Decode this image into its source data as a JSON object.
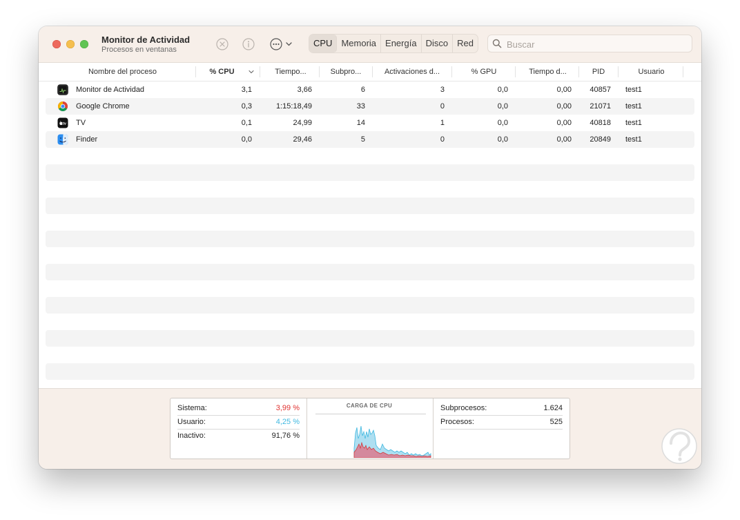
{
  "window": {
    "title": "Monitor de Actividad",
    "subtitle": "Procesos en ventanas"
  },
  "toolbar": {
    "stop_icon": "x-circle-icon",
    "info_icon": "info-icon",
    "more_icon": "ellipsis-circle-icon",
    "tabs": [
      {
        "label": "CPU",
        "active": true
      },
      {
        "label": "Memoria",
        "active": false
      },
      {
        "label": "Energía",
        "active": false
      },
      {
        "label": "Disco",
        "active": false
      },
      {
        "label": "Red",
        "active": false
      }
    ],
    "search": {
      "placeholder": "Buscar",
      "value": ""
    }
  },
  "table": {
    "columns": [
      "Nombre del proceso",
      "% CPU",
      "Tiempo...",
      "Subpro...",
      "Activaciones d...",
      "% GPU",
      "Tiempo d...",
      "PID",
      "Usuario"
    ],
    "sort_column": "% CPU",
    "sort_direction": "descending",
    "rows": [
      {
        "icon": "activity-monitor-icon",
        "name": "Monitor de Actividad",
        "cpu": "3,1",
        "time": "3,66",
        "threads": "6",
        "wakeups": "3",
        "gpu": "0,0",
        "gpu_time": "0,00",
        "pid": "40857",
        "user": "test1"
      },
      {
        "icon": "chrome-icon",
        "name": "Google Chrome",
        "cpu": "0,3",
        "time": "1:15:18,49",
        "threads": "33",
        "wakeups": "0",
        "gpu": "0,0",
        "gpu_time": "0,00",
        "pid": "21071",
        "user": "test1"
      },
      {
        "icon": "apple-tv-icon",
        "name": "TV",
        "cpu": "0,1",
        "time": "24,99",
        "threads": "14",
        "wakeups": "1",
        "gpu": "0,0",
        "gpu_time": "0,00",
        "pid": "40818",
        "user": "test1"
      },
      {
        "icon": "finder-icon",
        "name": "Finder",
        "cpu": "0,0",
        "time": "29,46",
        "threads": "5",
        "wakeups": "0",
        "gpu": "0,0",
        "gpu_time": "0,00",
        "pid": "20849",
        "user": "test1"
      }
    ]
  },
  "footer": {
    "sistema_label": "Sistema:",
    "sistema_value": "3,99 %",
    "usuario_label": "Usuario:",
    "usuario_value": "4,25 %",
    "inactivo_label": "Inactivo:",
    "inactivo_value": "91,76 %",
    "graph_title": "CARGA DE CPU",
    "subprocesos_label": "Subprocesos:",
    "subprocesos_value": "1.624",
    "procesos_label": "Procesos:",
    "procesos_value": "525"
  },
  "colors": {
    "sistema": "#e0312f",
    "usuario": "#3fb8e0"
  }
}
